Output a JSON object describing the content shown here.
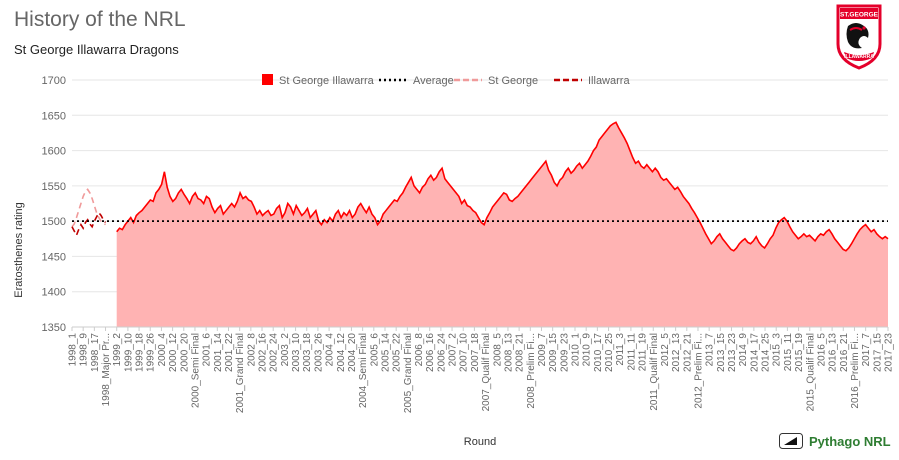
{
  "header": {
    "title": "History of the NRL",
    "subtitle": "St George Illawarra Dragons"
  },
  "logo": {
    "text_top": "ST.GEORGE",
    "text_bottom": "ILLAWARRA",
    "color": "#e4002b"
  },
  "brand": {
    "label": "Pythago NRL",
    "icon": "ruler-triangle-icon",
    "color": "#2e7d32"
  },
  "chart_data": {
    "type": "area",
    "ylabel": "Eratosthenes rating",
    "xlabel": "Round",
    "ylim": [
      1350,
      1700
    ],
    "yticks": [
      1350,
      1400,
      1450,
      1500,
      1550,
      1600,
      1650,
      1700
    ],
    "average": 1500,
    "grid": true,
    "legend_position": "top",
    "legend": [
      {
        "name": "St George Illawarra",
        "style": "square",
        "color": "#ff0000"
      },
      {
        "name": "Average",
        "style": "dotted",
        "color": "#000000"
      },
      {
        "name": "St George",
        "style": "dashed",
        "color": "#f09a9a"
      },
      {
        "name": "Illawarra",
        "style": "dashed",
        "color": "#c00000"
      }
    ],
    "x_tick_labels": [
      "1998_1",
      "1998_9",
      "1998_17",
      "1998_Major Pr...",
      "1999_2",
      "1999_10",
      "1999_18",
      "1999_26",
      "2000_4",
      "2000_12",
      "2000_20",
      "2000_Semi Final",
      "2001_6",
      "2001_14",
      "2001_22",
      "2001_Grand Final",
      "2002_8",
      "2002_16",
      "2002_24",
      "2003_2",
      "2003_10",
      "2003_18",
      "2003_26",
      "2004_4",
      "2004_12",
      "2004_20",
      "2004_Semi Final",
      "2005_6",
      "2005_14",
      "2005_22",
      "2005_Grand Final",
      "2006_8",
      "2006_16",
      "2006_24",
      "2007_2",
      "2007_10",
      "2007_18",
      "2007_Qualif Final",
      "2008_5",
      "2008_13",
      "2008_21",
      "2008_Prelim Fi...",
      "2009_7",
      "2009_15",
      "2009_23",
      "2010_1",
      "2010_9",
      "2010_17",
      "2010_25",
      "2011_3",
      "2011_11",
      "2011_19",
      "2011_Qualif Final",
      "2012_5",
      "2012_13",
      "2012_21",
      "2012_Prelim Fi...",
      "2013_7",
      "2013_15",
      "2013_23",
      "2014_9",
      "2014_17",
      "2014_25",
      "2015_3",
      "2015_11",
      "2015_19",
      "2015_Qualif Final",
      "2016_5",
      "2016_13",
      "2016_21",
      "2016_Prelim Fi...",
      "2017_7",
      "2017_15",
      "2017_23"
    ],
    "series": [
      {
        "name": "St George Illawarra",
        "color": "#ff0000",
        "fill": "#ffb3b3",
        "start_label": "1999_2",
        "y": [
          1485,
          1490,
          1488,
          1495,
          1500,
          1505,
          1498,
          1508,
          1512,
          1515,
          1520,
          1525,
          1530,
          1528,
          1540,
          1545,
          1552,
          1570,
          1548,
          1535,
          1528,
          1532,
          1540,
          1545,
          1538,
          1532,
          1525,
          1535,
          1540,
          1532,
          1530,
          1525,
          1535,
          1532,
          1520,
          1512,
          1518,
          1522,
          1510,
          1515,
          1520,
          1525,
          1520,
          1528,
          1540,
          1532,
          1535,
          1530,
          1528,
          1520,
          1510,
          1515,
          1508,
          1512,
          1515,
          1508,
          1510,
          1518,
          1522,
          1505,
          1512,
          1525,
          1520,
          1510,
          1522,
          1515,
          1508,
          1512,
          1518,
          1505,
          1510,
          1515,
          1500,
          1495,
          1502,
          1498,
          1505,
          1500,
          1510,
          1515,
          1505,
          1512,
          1508,
          1515,
          1505,
          1510,
          1520,
          1525,
          1518,
          1512,
          1520,
          1510,
          1505,
          1495,
          1500,
          1510,
          1515,
          1520,
          1525,
          1530,
          1528,
          1535,
          1540,
          1548,
          1555,
          1562,
          1550,
          1545,
          1540,
          1548,
          1552,
          1560,
          1565,
          1558,
          1562,
          1570,
          1575,
          1560,
          1555,
          1550,
          1545,
          1540,
          1535,
          1525,
          1530,
          1522,
          1520,
          1515,
          1512,
          1505,
          1498,
          1495,
          1505,
          1512,
          1520,
          1525,
          1530,
          1535,
          1540,
          1538,
          1530,
          1528,
          1532,
          1535,
          1540,
          1545,
          1550,
          1555,
          1560,
          1565,
          1570,
          1575,
          1580,
          1585,
          1572,
          1565,
          1555,
          1550,
          1558,
          1562,
          1570,
          1575,
          1568,
          1572,
          1578,
          1582,
          1575,
          1580,
          1585,
          1592,
          1600,
          1605,
          1615,
          1620,
          1625,
          1630,
          1635,
          1638,
          1640,
          1632,
          1625,
          1618,
          1610,
          1600,
          1590,
          1582,
          1585,
          1578,
          1575,
          1580,
          1575,
          1570,
          1575,
          1570,
          1562,
          1558,
          1560,
          1555,
          1550,
          1545,
          1548,
          1542,
          1535,
          1530,
          1525,
          1518,
          1512,
          1505,
          1498,
          1490,
          1482,
          1475,
          1468,
          1472,
          1478,
          1482,
          1475,
          1470,
          1465,
          1460,
          1458,
          1462,
          1468,
          1472,
          1475,
          1470,
          1468,
          1472,
          1478,
          1470,
          1465,
          1462,
          1468,
          1475,
          1480,
          1490,
          1498,
          1502,
          1505,
          1500,
          1492,
          1485,
          1480,
          1475,
          1478,
          1482,
          1478,
          1480,
          1476,
          1472,
          1478,
          1482,
          1480,
          1485,
          1488,
          1482,
          1475,
          1470,
          1465,
          1460,
          1458,
          1462,
          1468,
          1475,
          1482,
          1488,
          1492,
          1495,
          1490,
          1485,
          1488,
          1482,
          1478,
          1475,
          1478,
          1475
        ]
      },
      {
        "name": "St George",
        "color": "#f09a9a",
        "end_label": "1998_Major Pr...",
        "y": [
          1492,
          1496,
          1505,
          1515,
          1525,
          1535,
          1542,
          1545,
          1540,
          1532,
          1522,
          1512,
          1505,
          1500,
          1498,
          1495
        ]
      },
      {
        "name": "Illawarra",
        "color": "#c00000",
        "end_label": "1998_Major Pr...",
        "y": [
          1492,
          1486,
          1480,
          1488,
          1495,
          1490,
          1498,
          1502,
          1496,
          1492,
          1500,
          1506,
          1512,
          1508,
          1502,
          1498
        ]
      }
    ]
  }
}
